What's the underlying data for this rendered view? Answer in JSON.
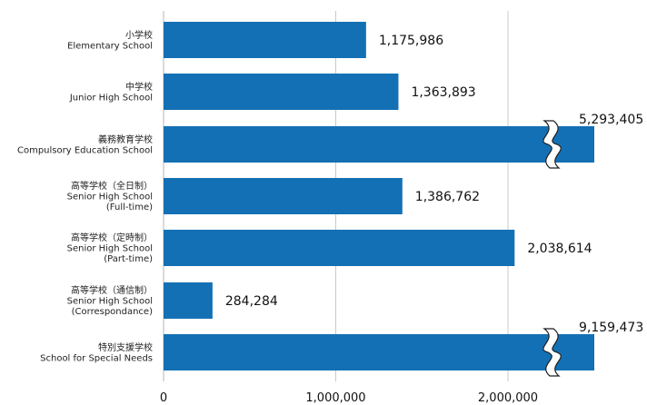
{
  "chart_data": {
    "type": "bar",
    "orientation": "horizontal",
    "categories": [
      {
        "ja": "小学校",
        "en": [
          "Elementary School"
        ]
      },
      {
        "ja": "中学校",
        "en": [
          "Junior High School"
        ]
      },
      {
        "ja": "義務教育学校",
        "en": [
          "Compulsory Education School"
        ]
      },
      {
        "ja": "高等学校（全日制）",
        "en": [
          "Senior High School",
          "(Full-time)"
        ]
      },
      {
        "ja": "高等学校（定時制）",
        "en": [
          "Senior High School",
          "(Part-time)"
        ]
      },
      {
        "ja": "高等学校（通信制）",
        "en": [
          "Senior High School",
          "(Correspondance)"
        ]
      },
      {
        "ja": "特別支援学校",
        "en": [
          "School for Special Needs"
        ]
      }
    ],
    "values": [
      1175986,
      1363893,
      5293405,
      1386762,
      2038614,
      284284,
      9159473
    ],
    "value_labels": [
      "1,175,986",
      "1,363,893",
      "5,293,405",
      "1,386,762",
      "2,038,614",
      "284,284",
      "9,159,473"
    ],
    "axis_broken": [
      false,
      false,
      true,
      false,
      false,
      false,
      true
    ],
    "xlim": [
      0,
      2500000
    ],
    "xticks": [
      0,
      1000000,
      2000000
    ],
    "xtick_labels": [
      "0",
      "1,000,000",
      "2,000,000"
    ],
    "grid": true,
    "bar_color": "#1470b4",
    "grid_color": "#c8c8c8"
  }
}
